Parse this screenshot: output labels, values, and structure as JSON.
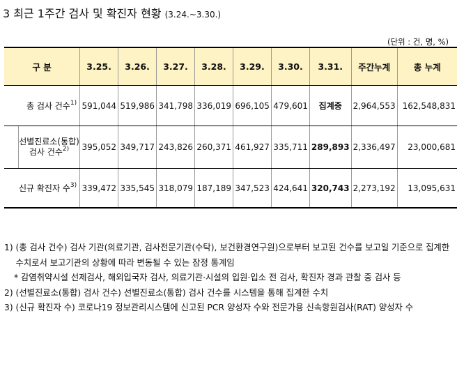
{
  "title": {
    "main": "3 최근 1주간 검사 및 확진자 현황",
    "range": "(3.24.~3.30.)"
  },
  "unit": "(단위 : 건, 명, %)",
  "table": {
    "headers": [
      "구 분",
      "3.25.",
      "3.26.",
      "3.27.",
      "3.28.",
      "3.29.",
      "3.30.",
      "3.31.",
      "주간누계",
      "총 누계"
    ],
    "rows": [
      {
        "label": "총 검사 건수",
        "sup": "1)",
        "cells": [
          "591,044",
          "519,986",
          "341,798",
          "336,019",
          "696,105",
          "479,601",
          "집계중",
          "2,964,553",
          "162,548,831"
        ]
      },
      {
        "label_line1": "선별진료소(통합)",
        "label_line2": "검사 건수",
        "sup": "2)",
        "cells": [
          "395,052",
          "349,717",
          "243,826",
          "260,371",
          "461,927",
          "335,711",
          "289,893",
          "2,336,497",
          "23,000,681"
        ]
      },
      {
        "label": "신규 확진자 수",
        "sup": "3)",
        "cells": [
          "339,472",
          "335,545",
          "318,079",
          "187,189",
          "347,523",
          "424,641",
          "320,743",
          "2,273,192",
          "13,095,631"
        ]
      }
    ]
  },
  "notes": [
    {
      "marker": "1) ",
      "text": "(총 검사 건수) 검사 기관(의료기관, 검사전문기관(수탁), 보건환경연구원)으로부터 보고된 건수를 보고일 기준으로 집계한 수치로서 보고기관의 상황에 따라 변동될 수 있는 잠정 통계임"
    },
    {
      "marker": "* ",
      "text": "감염취약시설 선제검사, 해외입국자 검사, 의료기관·시설의 입원·입소 전 검사, 확진자 경과 관찰 중 검사 등"
    },
    {
      "marker": "2) ",
      "text": "(선별진료소(통합) 검사 건수) 선별진료소(통합) 검사 건수를 시스템을 통해 집계한 수치"
    },
    {
      "marker": "3) ",
      "text": "(신규 확진자 수) 코로나19 정보관리시스템에 신고된 PCR 양성자 수와 전문가용 신속항원검사(RAT) 양성자 수"
    }
  ]
}
